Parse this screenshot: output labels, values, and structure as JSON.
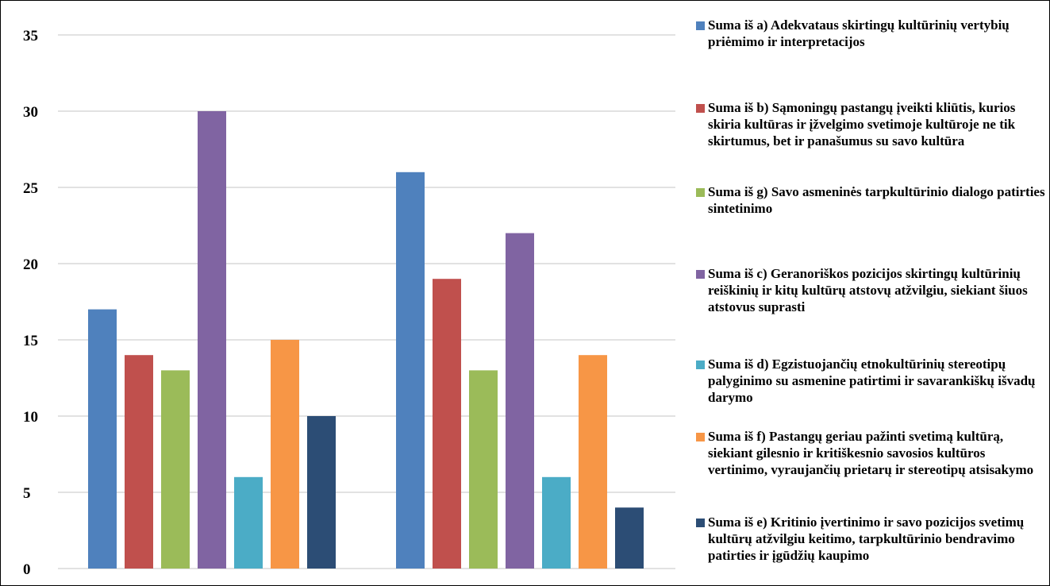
{
  "chart_data": {
    "type": "bar",
    "categories": [
      "",
      ""
    ],
    "ylim": [
      0,
      35
    ],
    "yticks": [
      0,
      5,
      10,
      15,
      20,
      25,
      30,
      35
    ],
    "grid": true,
    "legend_position": "right",
    "series": [
      {
        "name": "Suma iš a) Adekvataus skirtingų kultūrinių vertybių priėmimo ir interpretacijos",
        "color": "#4f81bd",
        "values": [
          17,
          26
        ]
      },
      {
        "name": "Suma iš b) Sąmoningų pastangų įveikti kliūtis, kurios skiria kultūras ir įžvelgimo svetimoje kultūroje ne tik skirtumus, bet ir panašumus su savo kultūra",
        "color": "#c0504d",
        "values": [
          14,
          19
        ]
      },
      {
        "name": "Suma iš g) Savo asmeninės tarpkultūrinio dialogo patirties sintetinimo",
        "color": "#9bbb59",
        "values": [
          13,
          13
        ]
      },
      {
        "name": "Suma iš c) Geranoriškos pozicijos skirtingų kultūrinių reiškinių ir kitų kultūrų atstovų atžvilgiu, siekiant šiuos atstovus suprasti",
        "color": "#8064a2",
        "values": [
          30,
          22
        ]
      },
      {
        "name": "Suma iš d) Egzistuojančių etnokultūrinių stereotipų palyginimo su asmenine patirtimi ir savarankiškų išvadų darymo",
        "color": "#4bacc6",
        "values": [
          6,
          6
        ]
      },
      {
        "name": "Suma iš f) Pastangų geriau pažinti svetimą kultūrą, siekiant gilesnio ir kritiškesnio savosios kultūros vertinimo, vyraujančių prietarų ir stereotipų atsisakymo",
        "color": "#f79646",
        "values": [
          15,
          14
        ]
      },
      {
        "name": "Suma iš e) Kritinio įvertinimo ir savo pozicijos svetimų kultūrų atžvilgiu keitimo, tarpkultūrinio bendravimo patirties ir įgūdžių kaupimo",
        "color": "#2c4d75",
        "values": [
          10,
          4
        ]
      }
    ]
  }
}
